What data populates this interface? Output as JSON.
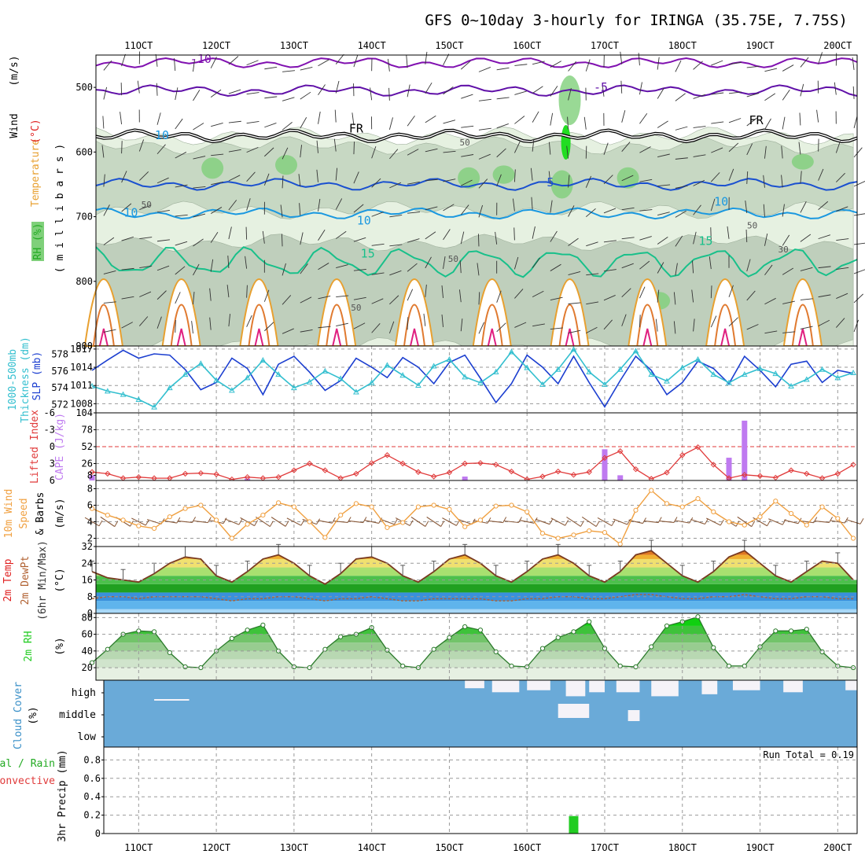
{
  "title": "GFS 0~10day 3-hourly for IRINGA (35.75E, 7.75S)",
  "run_total": "Run Total = 0.19",
  "colors": {
    "slp": "#1c3fd0",
    "thickness": "#33bfcf",
    "cape": "#bf7af0",
    "lifted": "#e03a3a",
    "wind": "#f0a040",
    "barb": "#8a5a3a",
    "dewpoint": "#b06030",
    "rh": "#22cc22",
    "cloud": "#6aaad8",
    "cloud_clear": "#f5f3f8",
    "precip": "#22cc22",
    "t_m10": "#8010b0",
    "t_m5": "#6010a8",
    "t_5": "#1a50d0",
    "t_10": "#1a98e0",
    "t_15": "#18c08a",
    "t_warm": "#e8a030",
    "t_hot": "#e02080"
  },
  "chart_data": [
    {
      "type": "heatmap",
      "name": "upper-air-cross-section",
      "x_tick_labels": [
        "11OCT",
        "12OCT",
        "13OCT",
        "14OCT",
        "15OCT",
        "16OCT",
        "17OCT",
        "18OCT",
        "19OCT",
        "20OCT"
      ],
      "ylabel_parts": [
        "RH (%)",
        "Temperature",
        "(°C)",
        "Wind",
        "(m/s)"
      ],
      "yaxis_label": "( m i l l i b a r s )",
      "y_ticks": [
        500,
        600,
        700,
        800,
        900
      ],
      "ylim": [
        900,
        450
      ],
      "contour_labels": [
        "-10",
        "-5",
        "FR",
        "FR",
        "5",
        "10",
        "10",
        "10",
        "15",
        "15",
        "10",
        "50",
        "50",
        "50",
        "50",
        "30",
        "50"
      ],
      "isotherms": [
        {
          "label": "-10",
          "level_mb": 462,
          "color_key": "t_m10"
        },
        {
          "label": "-5",
          "level_mb": 505,
          "color_key": "t_m5"
        },
        {
          "label": "FR",
          "level_mb": 575,
          "color_key": "fr"
        },
        {
          "label": "5",
          "level_mb": 650,
          "color_key": "t_5"
        },
        {
          "label": "10",
          "level_mb": 695,
          "color_key": "t_10"
        },
        {
          "label": "15",
          "level_mb": 770,
          "color_key": "t_15"
        }
      ]
    },
    {
      "type": "line",
      "name": "slp-thickness",
      "ylabel_left": [
        "1000-500mb",
        "Thickness (dm)"
      ],
      "ylabel_right": "SLP (mb)",
      "left_ticks": [
        572,
        574,
        576,
        578
      ],
      "right_ticks": [
        1008,
        1011,
        1014,
        1017
      ],
      "left_ylim": [
        571,
        579
      ],
      "right_ylim": [
        1006.5,
        1017.5
      ],
      "x": [
        10.4,
        10.6,
        10.8,
        11.0,
        11.2,
        11.4,
        11.6,
        11.8,
        12.0,
        12.2,
        12.4,
        12.6,
        12.8,
        13.0,
        13.2,
        13.4,
        13.6,
        13.8,
        14.0,
        14.2,
        14.4,
        14.6,
        14.8,
        15.0,
        15.2,
        15.4,
        15.6,
        15.8,
        16.0,
        16.2,
        16.4,
        16.6,
        16.8,
        17.0,
        17.2,
        17.4,
        17.6,
        17.8,
        18.0,
        18.2,
        18.4,
        18.6,
        18.8,
        19.0,
        19.2,
        19.4,
        19.6,
        19.8,
        20.0,
        20.2
      ],
      "series": [
        {
          "name": "SLP",
          "axis": "right",
          "color_key": "slp",
          "values": [
            1013.5,
            1015.2,
            1016.8,
            1015.5,
            1016.2,
            1016.0,
            1013.6,
            1010.3,
            1011.5,
            1015.5,
            1013.8,
            1009.5,
            1014.5,
            1015.8,
            1013.2,
            1010.2,
            1011.8,
            1015.5,
            1014.0,
            1012.3,
            1015.6,
            1014.0,
            1011.3,
            1014.8,
            1016.0,
            1012.2,
            1008.2,
            1011.3,
            1016.0,
            1014.0,
            1011.3,
            1015.8,
            1011.5,
            1007.5,
            1011.8,
            1015.8,
            1013.5,
            1009.5,
            1011.5,
            1015.0,
            1013.8,
            1011.3,
            1015.8,
            1013.5,
            1010.8,
            1014.5,
            1015.0,
            1011.5,
            1013.5,
            1013.0
          ]
        },
        {
          "name": "1000-500mb Thickness",
          "axis": "left",
          "color_key": "thickness",
          "values": [
            574.2,
            573.6,
            573.2,
            572.6,
            571.7,
            574.0,
            575.6,
            576.9,
            574.9,
            573.7,
            575.2,
            577.3,
            575.6,
            574.0,
            574.7,
            576.0,
            575.1,
            573.5,
            574.6,
            576.7,
            575.5,
            574.3,
            576.6,
            577.4,
            575.3,
            574.6,
            575.9,
            578.3,
            576.4,
            574.4,
            576.2,
            578.6,
            575.9,
            574.4,
            576.2,
            578.4,
            575.6,
            574.8,
            576.4,
            577.4,
            575.6,
            574.6,
            575.6,
            576.3,
            575.7,
            574.2,
            575.0,
            576.2,
            575.2,
            575.8
          ]
        }
      ]
    },
    {
      "type": "bar",
      "name": "cape-lifted-index",
      "ylabel_left": "Lifted Index",
      "ylabel_right": "CAPE (J/kg)",
      "left_ticks": [
        "-6",
        "-3",
        "0",
        "3",
        "6"
      ],
      "right_ticks": [
        8,
        26,
        52,
        78,
        104
      ],
      "right_ylim": [
        0,
        104
      ],
      "left_ylim": [
        6,
        -6
      ],
      "x": [
        10.4,
        10.6,
        10.8,
        11.0,
        11.2,
        11.4,
        11.6,
        11.8,
        12.0,
        12.2,
        12.4,
        12.6,
        12.8,
        13.0,
        13.2,
        13.4,
        13.6,
        13.8,
        14.0,
        14.2,
        14.4,
        14.6,
        14.8,
        15.0,
        15.2,
        15.4,
        15.6,
        15.8,
        16.0,
        16.2,
        16.4,
        16.6,
        16.8,
        17.0,
        17.2,
        17.4,
        17.6,
        17.8,
        18.0,
        18.2,
        18.4,
        18.6,
        18.8,
        19.0,
        19.2,
        19.4,
        19.6,
        19.8,
        20.0,
        20.2
      ],
      "series": [
        {
          "name": "CAPE",
          "axis": "right",
          "color_key": "cape",
          "values": [
            8,
            0,
            0,
            0,
            0,
            0,
            0,
            0,
            0,
            0,
            3,
            0,
            0,
            0,
            0,
            0,
            0,
            0,
            0,
            0,
            0,
            0,
            0,
            0,
            6,
            0,
            0,
            0,
            0,
            0,
            0,
            0,
            0,
            48,
            8,
            0,
            0,
            0,
            0,
            0,
            0,
            35,
            92,
            0,
            0,
            0,
            0,
            0,
            0,
            0
          ]
        },
        {
          "name": "Lifted Index",
          "axis": "left",
          "color_key": "lifted",
          "values": [
            4.5,
            4.8,
            5.6,
            5.4,
            5.6,
            5.6,
            4.8,
            4.7,
            4.9,
            5.8,
            5.4,
            5.6,
            5.4,
            4.2,
            3.0,
            4.2,
            5.6,
            4.8,
            2.9,
            1.5,
            3.0,
            4.5,
            5.3,
            4.6,
            3.0,
            2.9,
            3.2,
            4.4,
            5.8,
            5.3,
            4.4,
            5.0,
            4.5,
            2.0,
            0.8,
            4.0,
            5.7,
            4.6,
            1.5,
            0.1,
            3.2,
            5.6,
            5.0,
            5.2,
            5.5,
            4.2,
            4.8,
            5.6,
            4.8,
            3.2
          ]
        }
      ]
    },
    {
      "type": "line",
      "name": "10m-wind",
      "ylabel_parts": [
        "10m Wind",
        "Speed",
        "& Barbs",
        "(m/s)"
      ],
      "ylabel_colored": "10m Wind",
      "ylabel_speed": "Speed",
      "ylabel_barbs": "& Barbs",
      "ylabel_units": "(m/s)",
      "y_ticks": [
        2,
        4,
        6,
        8
      ],
      "ylim": [
        1,
        9
      ],
      "x": [
        10.4,
        10.6,
        10.8,
        11.0,
        11.2,
        11.4,
        11.6,
        11.8,
        12.0,
        12.2,
        12.4,
        12.6,
        12.8,
        13.0,
        13.2,
        13.4,
        13.6,
        13.8,
        14.0,
        14.2,
        14.4,
        14.6,
        14.8,
        15.0,
        15.2,
        15.4,
        15.6,
        15.8,
        16.0,
        16.2,
        16.4,
        16.6,
        16.8,
        17.0,
        17.2,
        17.4,
        17.6,
        17.8,
        18.0,
        18.2,
        18.4,
        18.6,
        18.8,
        19.0,
        19.2,
        19.4,
        19.6,
        19.8,
        20.0,
        20.2
      ],
      "series": [
        {
          "name": "10m Wind Speed",
          "color_key": "wind",
          "values": [
            5.6,
            4.8,
            4.2,
            3.5,
            3.2,
            4.6,
            5.6,
            6.0,
            4.2,
            2.0,
            3.7,
            4.8,
            6.3,
            5.8,
            4.0,
            2.1,
            4.8,
            6.2,
            5.8,
            3.3,
            3.9,
            5.8,
            6.0,
            5.5,
            3.4,
            4.2,
            5.9,
            6.0,
            5.2,
            2.6,
            2.0,
            2.4,
            2.9,
            2.7,
            1.3,
            5.4,
            7.8,
            6.2,
            5.8,
            6.8,
            5.2,
            4.0,
            3.6,
            4.6,
            6.5,
            5.0,
            3.6,
            5.8,
            4.4,
            2.0
          ]
        }
      ]
    },
    {
      "type": "area",
      "name": "2m-temperature",
      "ylabel_parts": [
        "2m Temp",
        "2m DewPt",
        "(6hr Min/Max)",
        "(°C)"
      ],
      "y_ticks": [
        0,
        8,
        16,
        24,
        32
      ],
      "ylim": [
        0,
        32
      ],
      "x": [
        10.4,
        10.6,
        10.8,
        11.0,
        11.2,
        11.4,
        11.6,
        11.8,
        12.0,
        12.2,
        12.4,
        12.6,
        12.8,
        13.0,
        13.2,
        13.4,
        13.6,
        13.8,
        14.0,
        14.2,
        14.4,
        14.6,
        14.8,
        15.0,
        15.2,
        15.4,
        15.6,
        15.8,
        16.0,
        16.2,
        16.4,
        16.6,
        16.8,
        17.0,
        17.2,
        17.4,
        17.6,
        17.8,
        18.0,
        18.2,
        18.4,
        18.6,
        18.8,
        19.0,
        19.2,
        19.4,
        19.6,
        19.8,
        20.0,
        20.2
      ],
      "series": [
        {
          "name": "2m Temp",
          "values": [
            20,
            17,
            16,
            15,
            19,
            24,
            27,
            26,
            18,
            15,
            20,
            26,
            28,
            24,
            18,
            14,
            19,
            26,
            27,
            24,
            18,
            15,
            20,
            26,
            28,
            24,
            18,
            15,
            20,
            26,
            28,
            24,
            18,
            15,
            20,
            28,
            30,
            24,
            18,
            15,
            20,
            27,
            30,
            24,
            18,
            15,
            20,
            25,
            24,
            16
          ]
        },
        {
          "name": "2m DewPt",
          "color_key": "dewpoint",
          "values": [
            7,
            8,
            8,
            7,
            8,
            8,
            8,
            8,
            7,
            6,
            7,
            7,
            8,
            8,
            7,
            6,
            7,
            7,
            8,
            7,
            6,
            6,
            7,
            7,
            7,
            7,
            6,
            6,
            7,
            7,
            8,
            8,
            7,
            7,
            8,
            9,
            9,
            8,
            7,
            7,
            8,
            8,
            9,
            8,
            7,
            7,
            8,
            8,
            7,
            7
          ]
        }
      ]
    },
    {
      "type": "area",
      "name": "2m-rh",
      "ylabel": "2m RH",
      "yunit": "(%)",
      "y_ticks": [
        20,
        40,
        60,
        80
      ],
      "ylim": [
        5,
        85
      ],
      "x": [
        10.4,
        10.6,
        10.8,
        11.0,
        11.2,
        11.4,
        11.6,
        11.8,
        12.0,
        12.2,
        12.4,
        12.6,
        12.8,
        13.0,
        13.2,
        13.4,
        13.6,
        13.8,
        14.0,
        14.2,
        14.4,
        14.6,
        14.8,
        15.0,
        15.2,
        15.4,
        15.6,
        15.8,
        16.0,
        16.2,
        16.4,
        16.6,
        16.8,
        17.0,
        17.2,
        17.4,
        17.6,
        17.8,
        18.0,
        18.2,
        18.4,
        18.6,
        18.8,
        19.0,
        19.2,
        19.4,
        19.6,
        19.8,
        20.0,
        20.2
      ],
      "series": [
        {
          "name": "2m RH",
          "color_key": "rh",
          "values": [
            26,
            42,
            60,
            64,
            63,
            38,
            21,
            20,
            40,
            55,
            65,
            71,
            40,
            21,
            20,
            42,
            57,
            60,
            68,
            41,
            22,
            20,
            42,
            56,
            69,
            65,
            39,
            22,
            21,
            43,
            56,
            63,
            75,
            43,
            22,
            21,
            45,
            70,
            75,
            81,
            44,
            22,
            22,
            45,
            64,
            64,
            66,
            39,
            22,
            20
          ]
        }
      ]
    },
    {
      "type": "heatmap",
      "name": "cloud-cover",
      "ylabel": "Cloud Cover",
      "yunit": "(%)",
      "levels": [
        "high",
        "middle",
        "low"
      ]
    },
    {
      "type": "bar",
      "name": "precipitation",
      "ylabel": "3hr Precip (mm)",
      "left_labels": [
        "Total / Rain",
        "Convective"
      ],
      "y_ticks": [
        "0",
        "0.2",
        "0.4",
        "0.6",
        "0.8"
      ],
      "ylim": [
        0,
        0.94
      ],
      "x_tick_labels": [
        "11OCT",
        "12OCT",
        "13OCT",
        "14OCT",
        "15OCT",
        "16OCT",
        "17OCT",
        "18OCT",
        "19OCT",
        "20OCT"
      ],
      "x": [
        16.6
      ],
      "series": [
        {
          "name": "Total / Rain",
          "color_key": "precip",
          "values": [
            0.19
          ]
        }
      ]
    }
  ]
}
